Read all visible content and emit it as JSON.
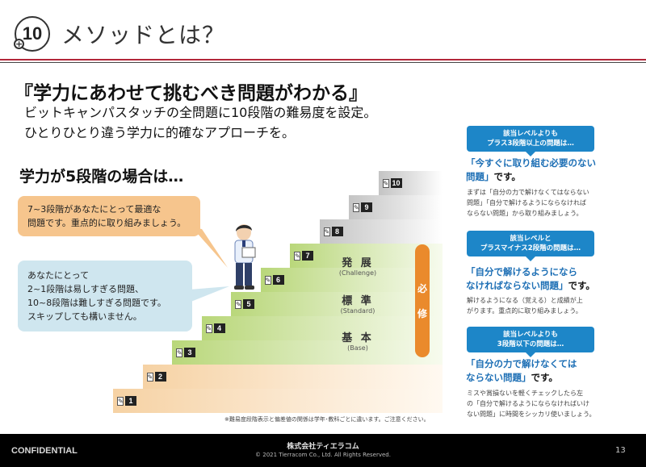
{
  "header": {
    "badge_number": "10",
    "badge_plus": "+",
    "title": "メソッドとは？"
  },
  "headline": "『学力にあわせて挑むべき問題がわかる』",
  "sublines": [
    "ビットキャンパスタッチの全問題に10段階の難易度を設定。",
    "ひとりひとり違う学力に的確なアプローチを。"
  ],
  "section_title": "学力が5段階の場合は…",
  "bubble_orange": [
    "7~3段階があなたにとって最適な",
    "問題です。重点的に取り組みましょう。"
  ],
  "bubble_blue": [
    "あなたにとって",
    "2~1段階は易しすぎる問題、",
    "10~8段階は難しすぎる問題です。",
    "スキップしても構いません。"
  ],
  "steps": [
    "1",
    "2",
    "3",
    "4",
    "5",
    "6",
    "7",
    "8",
    "9",
    "10"
  ],
  "bands": [
    {
      "jp": "発 展",
      "en": "(Challenge)"
    },
    {
      "jp": "標 準",
      "en": "(Standard)"
    },
    {
      "jp": "基 本",
      "en": "(Base)"
    }
  ],
  "hisshu": [
    "必",
    "修"
  ],
  "step_footnote": "※難易度段階表示と偏差値の関係は学年･教科ごとに違います。ご注意ください。",
  "right_panel": [
    {
      "pill": [
        "該当レベルよりも",
        "プラス3段階以上の問題は…"
      ],
      "head": [
        "「今すぐに取り組む必要のない",
        "問題」です。"
      ],
      "body": [
        "まずは「自分の力で解けなくてはならない",
        "問題」「自分で解けるようにならなければ",
        "ならない問題」から取り組みましょう。"
      ]
    },
    {
      "pill": [
        "該当レベルと",
        "プラスマイナス2段階の問題は…"
      ],
      "head": [
        "「自分で解けるようになら",
        "なければならない問題」です。"
      ],
      "body": [
        "解けるようになる（覚える）と成績が上",
        "がります。重点的に取り組みましょう。"
      ]
    },
    {
      "pill": [
        "該当レベルよりも",
        "3段階以下の問題は…"
      ],
      "head": [
        "「自分の力で解けなくては",
        "ならない問題」です。"
      ],
      "body": [
        "ミスや賞損ないを軽くチェックしたら左",
        "の「自分で解けるようにならなければいけ",
        "ない問題」に時間をシッカリ使いましょう。"
      ]
    }
  ],
  "footer": {
    "confidential": "CONFIDENTIAL",
    "company": "株式会社ティエラコム",
    "copyright": "© 2021 Tierracom Co., Ltd. All Rights Reserved.",
    "page_number": "13"
  }
}
